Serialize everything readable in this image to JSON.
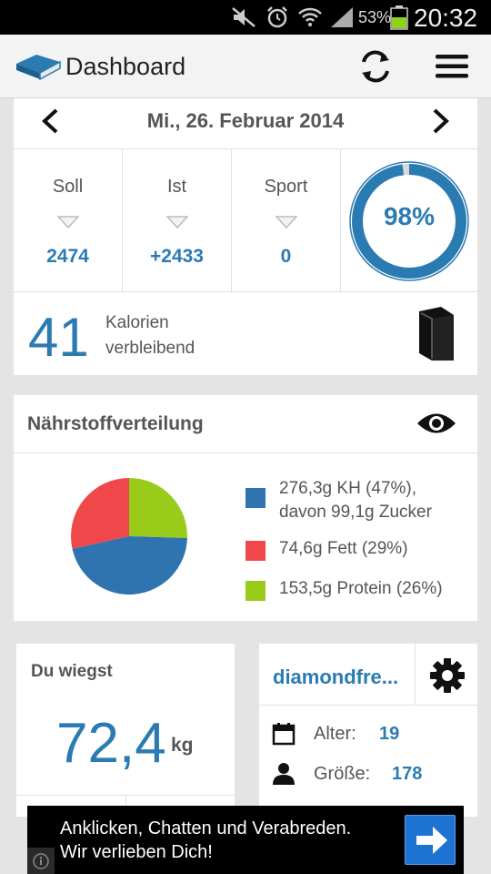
{
  "status": {
    "battery_pct": "53%",
    "time": "20:32"
  },
  "appbar": {
    "title": "Dashboard"
  },
  "date_nav": {
    "date": "Mi., 26. Februar 2014"
  },
  "stats": [
    {
      "label": "Soll",
      "value": "2474"
    },
    {
      "label": "Ist",
      "value": "+2433"
    },
    {
      "label": "Sport",
      "value": "0"
    }
  ],
  "progress": {
    "label": "98%",
    "value": 0.98
  },
  "remaining": {
    "value": "41",
    "line1": "Kalorien",
    "line2": "verbleibend"
  },
  "nutrients": {
    "title": "Nährstoffverteilung",
    "items": [
      {
        "line1": "276,3g KH (47%),",
        "line2": "davon 99,1g Zucker",
        "color": "#2f74b0",
        "share": 47
      },
      {
        "line1": "74,6g Fett (29%)",
        "color": "#f0474b",
        "share": 29
      },
      {
        "line1": "153,5g Protein (26%)",
        "color": "#99cc1a",
        "share": 26
      }
    ]
  },
  "weight": {
    "title": "Du wiegst",
    "value": "72,4",
    "unit": "kg"
  },
  "profile": {
    "name": "diamondfre...",
    "rows": [
      {
        "key": "Alter:",
        "value": "19",
        "icon": "calendar-icon"
      },
      {
        "key": "Größe:",
        "value": "178",
        "icon": "person-icon"
      }
    ]
  },
  "ad": {
    "line1": "Anklicken, Chatten und Verabreden.",
    "line2": "Wir verlieben Dich!"
  },
  "colors": {
    "accent": "#2b7bb3",
    "ring_track": "#d9d9d9"
  }
}
